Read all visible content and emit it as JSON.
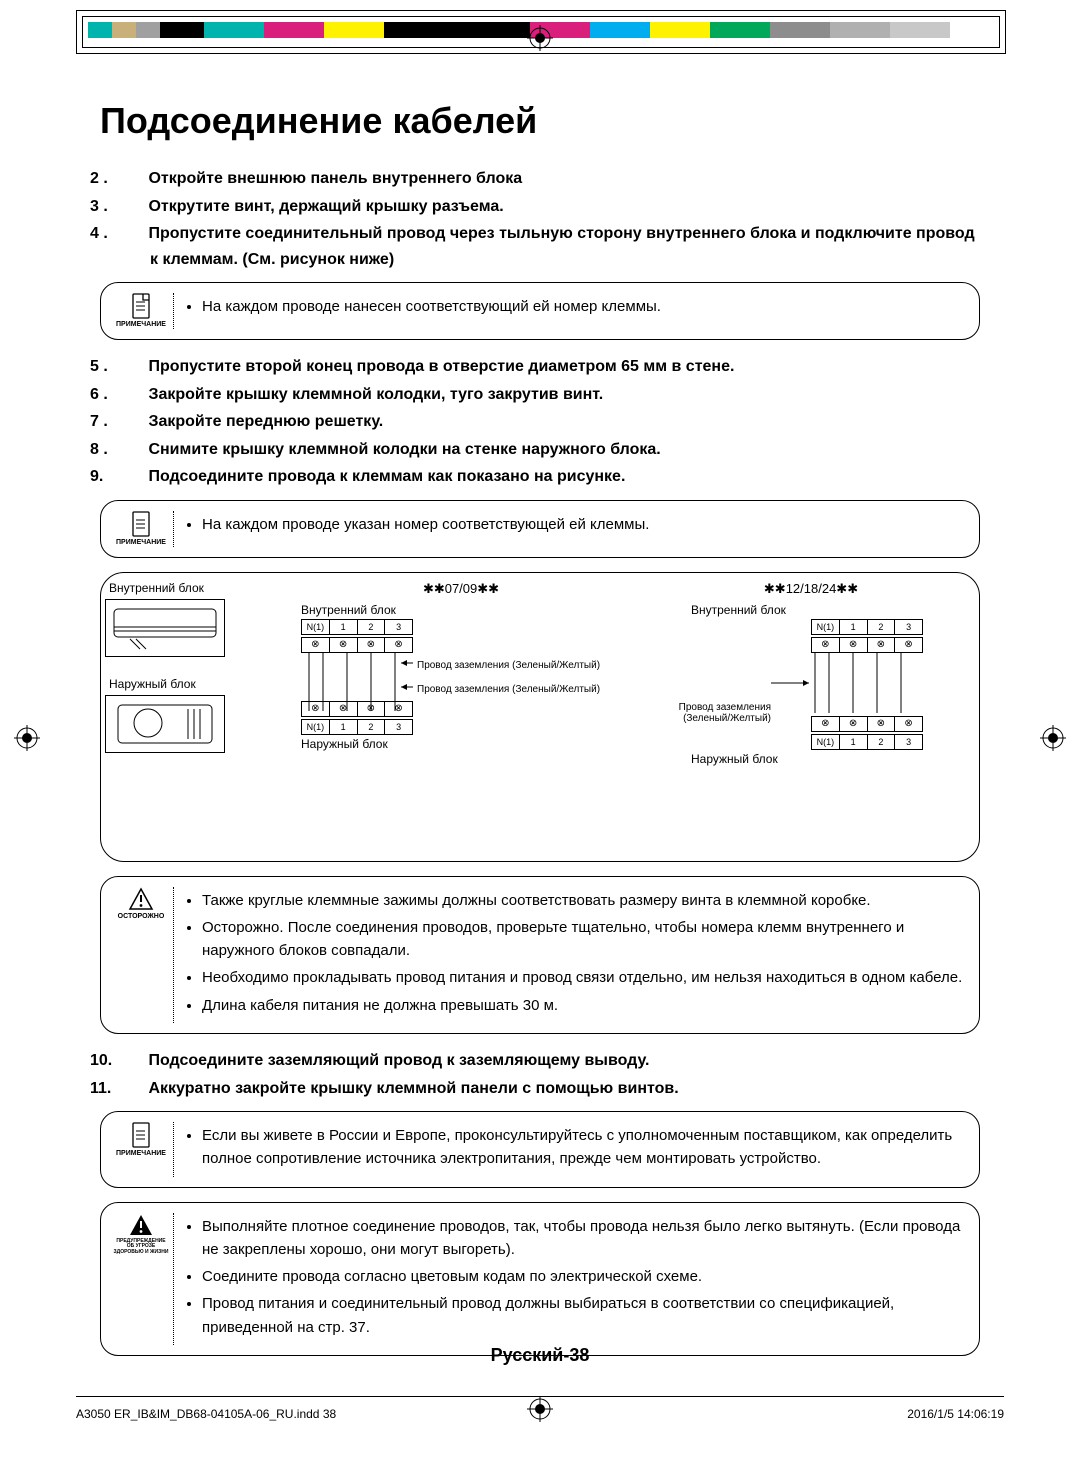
{
  "colorbar": [
    "#00b4ae",
    "#c9b07a",
    "#a0a0a0",
    "#000000",
    "#00b4ae",
    "#d91f7b",
    "#fff200",
    "#000000",
    "#d91f7b",
    "#00adef",
    "#fff200",
    "#00a859",
    "#8d8d8d",
    "#b0b0b0",
    "#c8c8c8"
  ],
  "title": "Подсоединение кабелей",
  "steps_a": [
    {
      "n": "2 .",
      "t": "Откройте внешнюю панель внутреннего блока"
    },
    {
      "n": "3 .",
      "t": "Открутите винт, держащий крышку разъема."
    },
    {
      "n": "4 .",
      "t": "Пропустите соединительный провод через тыльную сторону внутреннего блока и подключите провод к клеммам. (См. рисунок ниже)"
    }
  ],
  "note1": {
    "label": "ПРИМЕЧАНИЕ",
    "items": [
      "На каждом проводе нанесен соответствующий ей номер клеммы."
    ]
  },
  "steps_b": [
    {
      "n": "5 .",
      "t": "Пропустите второй конец провода в отверстие диаметром 65 мм в стене."
    },
    {
      "n": "6 .",
      "t": "Закройте крышку клеммной колодки, туго закрутив винт."
    },
    {
      "n": "7 .",
      "t": "Закройте переднюю решетку."
    },
    {
      "n": "8 .",
      "t": "Снимите крышку клеммной колодки на стенке наружного блока."
    },
    {
      "n": "9.",
      "t": "Подсоедините провода к клеммам как показано на рисунке."
    }
  ],
  "note2": {
    "label": "ПРИМЕЧАНИЕ",
    "items": [
      "На каждом проводе указан номер соответствующей ей клеммы."
    ]
  },
  "figure": {
    "indoor_label": "Внутренний блок",
    "outdoor_label": "Наружный блок",
    "model_a": "✱✱07/09✱✱",
    "model_b": "✱✱12/18/24✱✱",
    "term_labels": [
      "N(1)",
      "1",
      "2",
      "3"
    ],
    "gnd": "Провод заземления (Зеленый/Желтый)"
  },
  "caution": {
    "label": "ОСТОРОЖНО",
    "items": [
      "Также круглые клеммные зажимы должны соответствовать размеру винта в клеммной коробке.",
      "Осторожно. После соединения проводов, проверьте тщательно, чтобы номера клемм внутреннего и наружного блоков совпадали.",
      "Необходимо прокладывать провод питания и провод связи отдельно, им нельзя находиться в одном кабеле.",
      "Длина кабеля питания не должна превышать 30 м."
    ]
  },
  "steps_c": [
    {
      "n": "10.",
      "t": "Подсоедините заземляющий провод к заземляющему выводу."
    },
    {
      "n": "11.",
      "t": "Аккуратно закройте крышку клеммной панели с помощью винтов."
    }
  ],
  "note3": {
    "label": "ПРИМЕЧАНИЕ",
    "items": [
      "Если вы живете в России и Европе, проконсультируйтесь с уполномоченным поставщиком, как определить полное сопротивление источника электропитания, прежде чем монтировать устройство."
    ]
  },
  "warning": {
    "label": "ПРЕДУПРЕЖДЕНИЕ ОБ УГРОЗЕ ЗДОРОВЬЮ И ЖИЗНИ",
    "items": [
      "Выполняйте плотное соединение проводов, так, чтобы провода нельзя было легко вытянуть. (Если провода не закреплены хорошо, они могут выгореть).",
      "Соедините провода согласно цветовым кодам по электрической схеме.",
      "Провод питания и соединительный провод должны выбираться в соответствии со спецификацией, приведенной на стр. 37."
    ]
  },
  "page_footer": "Русский-38",
  "print": {
    "file": "A3050 ER_IB&IM_DB68-04105A-06_RU.indd   38",
    "date": "2016/1/5   14:06:19"
  }
}
